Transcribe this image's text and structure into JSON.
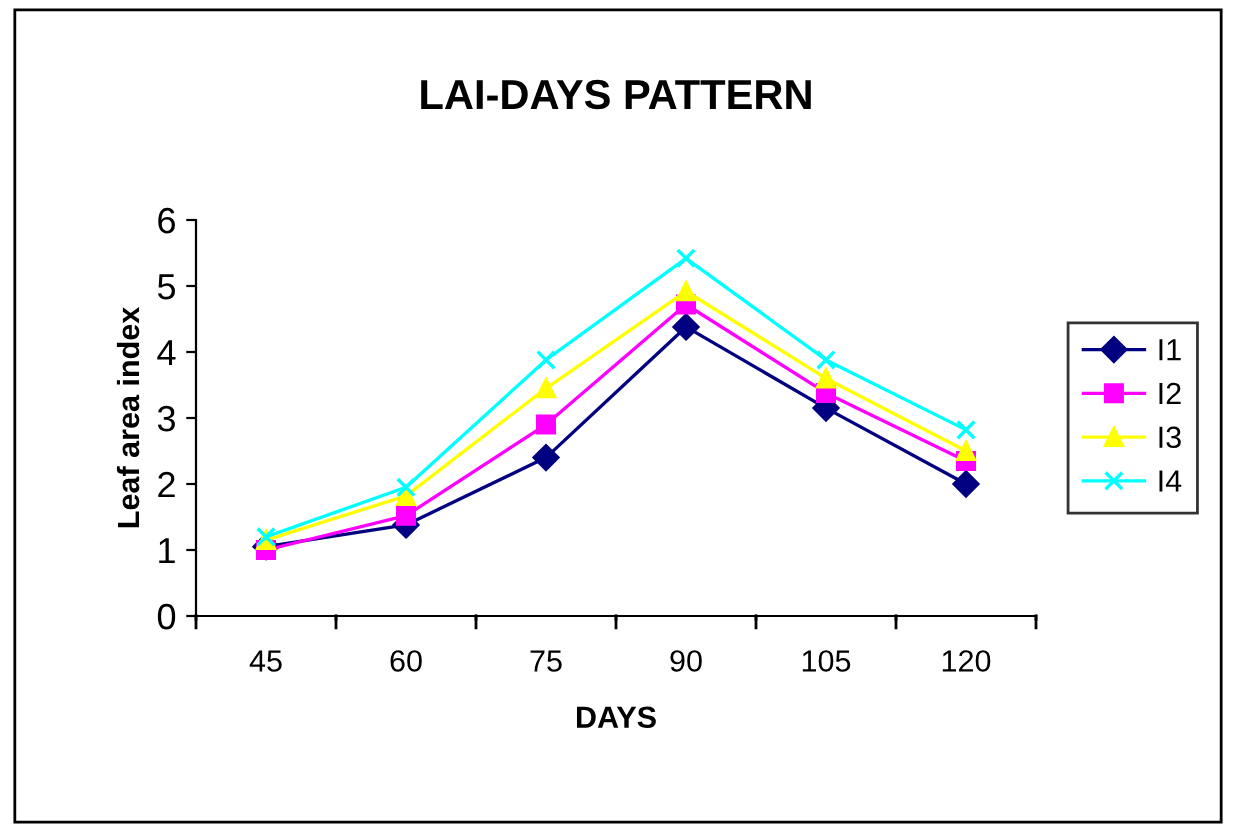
{
  "chart_data": {
    "type": "line",
    "title": "LAI-DAYS PATTERN",
    "xlabel": "DAYS",
    "ylabel": "Leaf area index",
    "categories": [
      "45",
      "60",
      "75",
      "90",
      "105",
      "120"
    ],
    "series": [
      {
        "name": "I1",
        "color": "#000080",
        "marker": "diamond",
        "values": [
          1.05,
          1.38,
          2.4,
          4.38,
          3.15,
          2.0
        ]
      },
      {
        "name": "I2",
        "color": "#ff00ff",
        "marker": "square",
        "values": [
          1.0,
          1.52,
          2.9,
          4.72,
          3.38,
          2.35
        ]
      },
      {
        "name": "I3",
        "color": "#ffff00",
        "marker": "triangle",
        "values": [
          1.15,
          1.82,
          3.45,
          4.92,
          3.6,
          2.5
        ]
      },
      {
        "name": "I4",
        "color": "#00ffff",
        "marker": "cross",
        "values": [
          1.2,
          1.95,
          3.88,
          5.42,
          3.88,
          2.82
        ]
      }
    ],
    "ylim": [
      0,
      6
    ],
    "yticks": [
      0,
      1,
      2,
      3,
      4,
      5,
      6
    ],
    "grid": false,
    "legend": "right",
    "line_style": "solid"
  }
}
